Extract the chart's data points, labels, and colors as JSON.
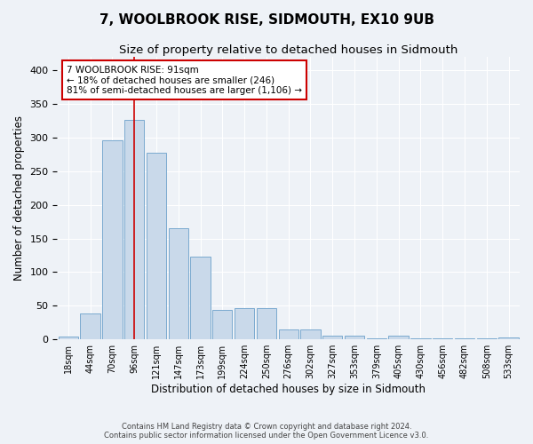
{
  "title": "7, WOOLBROOK RISE, SIDMOUTH, EX10 9UB",
  "subtitle": "Size of property relative to detached houses in Sidmouth",
  "xlabel": "Distribution of detached houses by size in Sidmouth",
  "ylabel": "Number of detached properties",
  "bar_labels": [
    "18sqm",
    "44sqm",
    "70sqm",
    "96sqm",
    "121sqm",
    "147sqm",
    "173sqm",
    "199sqm",
    "224sqm",
    "250sqm",
    "276sqm",
    "302sqm",
    "327sqm",
    "353sqm",
    "379sqm",
    "405sqm",
    "430sqm",
    "456sqm",
    "482sqm",
    "508sqm",
    "533sqm"
  ],
  "bar_values": [
    4,
    38,
    296,
    326,
    278,
    166,
    123,
    44,
    46,
    46,
    15,
    15,
    5,
    6,
    2,
    6,
    2,
    2,
    1,
    1,
    3
  ],
  "bar_color": "#c9d9ea",
  "bar_edge_color": "#7aaacf",
  "property_line_x": 3.0,
  "annotation_title": "7 WOOLBROOK RISE: 91sqm",
  "annotation_line1": "← 18% of detached houses are smaller (246)",
  "annotation_line2": "81% of semi-detached houses are larger (1,106) →",
  "annotation_box_color": "#ffffff",
  "annotation_box_edge_color": "#cc0000",
  "vline_color": "#cc0000",
  "background_color": "#eef2f7",
  "grid_color": "#ffffff",
  "footer_line1": "Contains HM Land Registry data © Crown copyright and database right 2024.",
  "footer_line2": "Contains public sector information licensed under the Open Government Licence v3.0.",
  "ylim": [
    0,
    420
  ],
  "title_fontsize": 11,
  "subtitle_fontsize": 9.5
}
